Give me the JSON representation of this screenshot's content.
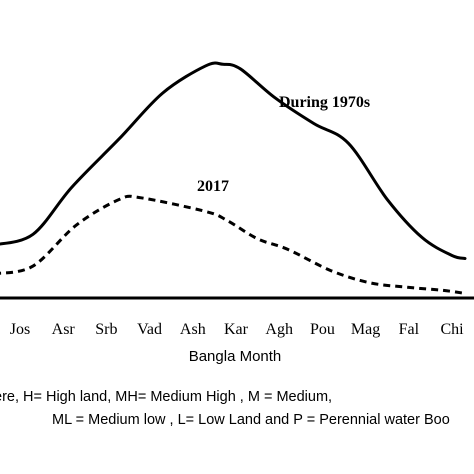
{
  "chart_data": {
    "type": "line",
    "xlabel": "Bangla Month",
    "categories": [
      "Jos",
      "Asr",
      "Srb",
      "Vad",
      "Ash",
      "Kar",
      "Agh",
      "Pou",
      "Mag",
      "Fal",
      "Chi"
    ],
    "series": [
      {
        "name": "During 1970s",
        "style": "solid",
        "color": "#000000",
        "points": [
          [
            -0.6,
            3.5
          ],
          [
            0.3,
            4.2
          ],
          [
            1.2,
            7.3
          ],
          [
            2.3,
            10.5
          ],
          [
            3.3,
            13.5
          ],
          [
            4.3,
            15.3
          ],
          [
            4.7,
            15.4
          ],
          [
            5.1,
            15.1
          ],
          [
            5.9,
            13.2
          ],
          [
            6.8,
            11.5
          ],
          [
            7.6,
            10.2
          ],
          [
            8.5,
            6.5
          ],
          [
            9.3,
            4.0
          ],
          [
            10.0,
            2.8
          ],
          [
            10.3,
            2.6
          ]
        ]
      },
      {
        "name": "2017",
        "style": "dashed",
        "color": "#000000",
        "points": [
          [
            -0.6,
            1.6
          ],
          [
            0.3,
            2.1
          ],
          [
            1.3,
            4.8
          ],
          [
            2.3,
            6.5
          ],
          [
            2.8,
            6.6
          ],
          [
            4.3,
            5.7
          ],
          [
            4.8,
            5.1
          ],
          [
            5.5,
            3.9
          ],
          [
            6.2,
            3.2
          ],
          [
            7.2,
            1.8
          ],
          [
            8.1,
            1.0
          ],
          [
            9.0,
            0.7
          ],
          [
            9.8,
            0.5
          ],
          [
            10.3,
            0.3
          ]
        ]
      }
    ],
    "annotations": [
      "During 1970s",
      "2017"
    ],
    "ylim": [
      0,
      17
    ]
  },
  "notes": {
    "line1": "ere, H= High land, MH= Medium High , M = Medium,",
    "line2": "ML = Medium low , L=  Low Land and P = Perennial water Boo"
  }
}
